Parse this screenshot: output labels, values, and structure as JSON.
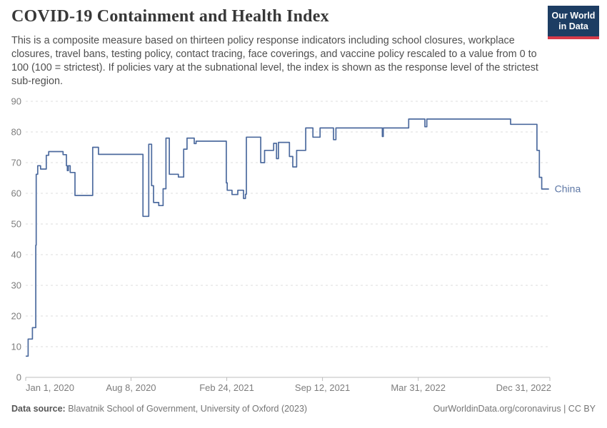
{
  "header": {
    "title": "COVID-19 Containment and Health Index",
    "subtitle": "This is a composite measure based on thirteen policy response indicators including school closures, workplace closures, travel bans, testing policy, contact tracing, face coverings, and vaccine policy rescaled to a value from 0 to 100 (100 = strictest). If policies vary at the subnational level, the index is shown as the response level of the strictest sub-region."
  },
  "logo": {
    "line1": "Our World",
    "line2": "in Data",
    "bg_color": "#1d3d63",
    "accent_color": "#d73a49"
  },
  "footer": {
    "data_source_label": "Data source:",
    "data_source_value": " Blavatnik School of Government, University of Oxford (2023)",
    "site_link": "OurWorldinData.org/coronavirus",
    "license": " | CC BY"
  },
  "chart_data": {
    "type": "line",
    "title": "COVID-19 Containment and Health Index",
    "entity": "China",
    "step": true,
    "grid": "dashed-horizontal",
    "legend_position": "line-end-label",
    "ylabel": "",
    "xlabel": "",
    "ylim": [
      0,
      90
    ],
    "yticks": [
      0,
      10,
      20,
      30,
      40,
      50,
      60,
      70,
      80,
      90
    ],
    "xrange": [
      "2020-01-01",
      "2022-12-31"
    ],
    "xticks": [
      {
        "date": "2020-01-01",
        "label": "Jan 1, 2020",
        "align": "start"
      },
      {
        "date": "2020-08-08",
        "label": "Aug 8, 2020",
        "align": "middle"
      },
      {
        "date": "2021-02-24",
        "label": "Feb 24, 2021",
        "align": "middle"
      },
      {
        "date": "2021-09-12",
        "label": "Sep 12, 2021",
        "align": "middle"
      },
      {
        "date": "2022-03-31",
        "label": "Mar 31, 2022",
        "align": "middle"
      },
      {
        "date": "2022-12-31",
        "label": "Dec 31, 2022",
        "align": "end"
      }
    ],
    "series": [
      {
        "name": "China",
        "color": "#4c6a9e",
        "label_color": "#5d77a5",
        "points": [
          [
            "2020-01-01",
            6.9
          ],
          [
            "2020-01-06",
            12.5
          ],
          [
            "2020-01-15",
            16.2
          ],
          [
            "2020-01-22",
            43.1
          ],
          [
            "2020-01-23",
            66.2
          ],
          [
            "2020-01-26",
            69.0
          ],
          [
            "2020-02-01",
            67.9
          ],
          [
            "2020-02-13",
            72.4
          ],
          [
            "2020-02-18",
            73.6
          ],
          [
            "2020-03-19",
            72.6
          ],
          [
            "2020-03-26",
            69.0
          ],
          [
            "2020-03-28",
            67.4
          ],
          [
            "2020-03-30",
            69.0
          ],
          [
            "2020-04-03",
            66.8
          ],
          [
            "2020-04-13",
            59.3
          ],
          [
            "2020-05-20",
            75.0
          ],
          [
            "2020-06-01",
            72.7
          ],
          [
            "2020-09-02",
            52.5
          ],
          [
            "2020-09-14",
            76.0
          ],
          [
            "2020-09-20",
            62.5
          ],
          [
            "2020-09-24",
            57.0
          ],
          [
            "2020-10-05",
            56.0
          ],
          [
            "2020-10-14",
            61.5
          ],
          [
            "2020-10-20",
            78.0
          ],
          [
            "2020-10-27",
            66.2
          ],
          [
            "2020-11-15",
            65.3
          ],
          [
            "2020-11-26",
            74.4
          ],
          [
            "2020-12-03",
            78.0
          ],
          [
            "2020-12-18",
            76.2
          ],
          [
            "2020-12-22",
            77.0
          ],
          [
            "2021-02-23",
            63.4
          ],
          [
            "2021-02-25",
            61.0
          ],
          [
            "2021-03-07",
            59.6
          ],
          [
            "2021-03-19",
            61.0
          ],
          [
            "2021-03-31",
            58.3
          ],
          [
            "2021-04-04",
            59.7
          ],
          [
            "2021-04-06",
            78.3
          ],
          [
            "2021-05-06",
            70.0
          ],
          [
            "2021-05-14",
            74.0
          ],
          [
            "2021-06-02",
            76.3
          ],
          [
            "2021-06-08",
            71.3
          ],
          [
            "2021-06-12",
            76.6
          ],
          [
            "2021-07-05",
            72.0
          ],
          [
            "2021-07-12",
            68.6
          ],
          [
            "2021-07-20",
            74.0
          ],
          [
            "2021-08-08",
            81.3
          ],
          [
            "2021-08-23",
            78.3
          ],
          [
            "2021-09-07",
            81.3
          ],
          [
            "2021-10-05",
            77.5
          ],
          [
            "2021-10-10",
            81.3
          ],
          [
            "2022-01-15",
            78.5
          ],
          [
            "2022-01-17",
            81.3
          ],
          [
            "2022-03-11",
            84.2
          ],
          [
            "2022-04-14",
            81.7
          ],
          [
            "2022-04-18",
            84.2
          ],
          [
            "2022-10-10",
            82.5
          ],
          [
            "2022-12-04",
            74.0
          ],
          [
            "2022-12-09",
            65.2
          ],
          [
            "2022-12-14",
            61.4
          ],
          [
            "2022-12-29",
            61.4
          ]
        ]
      }
    ]
  }
}
